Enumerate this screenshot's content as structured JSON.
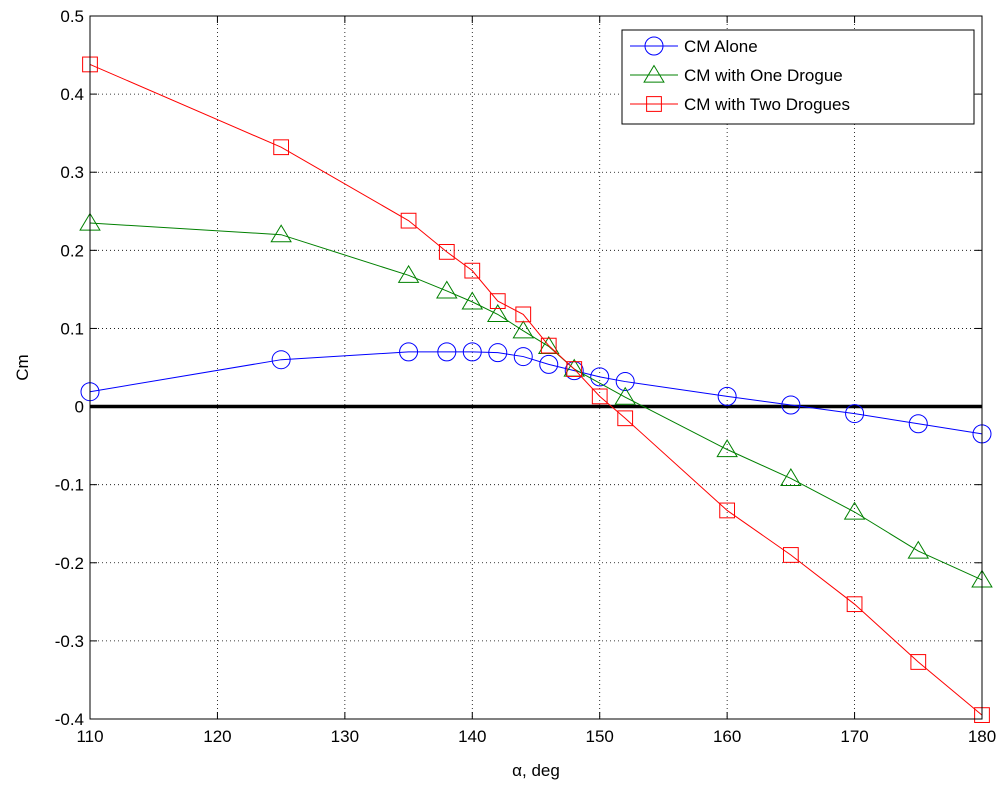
{
  "chart_data": {
    "type": "line",
    "title": "",
    "xlabel": "α, deg",
    "ylabel": "Cm",
    "xlim": [
      110,
      180
    ],
    "ylim": [
      -0.4,
      0.5
    ],
    "x_ticks": [
      110,
      120,
      130,
      140,
      150,
      160,
      170,
      180
    ],
    "x_tick_labels": [
      "110",
      "120",
      "130",
      "140",
      "150",
      "160",
      "170",
      "180"
    ],
    "y_ticks": [
      -0.4,
      -0.3,
      -0.2,
      -0.1,
      0,
      0.1,
      0.2,
      0.3,
      0.4,
      0.5
    ],
    "y_tick_labels": [
      "-0.4",
      "-0.3",
      "-0.2",
      "-0.1",
      "0",
      "0.1",
      "0.2",
      "0.3",
      "0.4",
      "0.5"
    ],
    "grid": true,
    "legend_position": "top-right",
    "reference_line": {
      "y": 0,
      "color": "#000000"
    },
    "series": [
      {
        "name": "CM Alone",
        "color": "#0000ff",
        "marker": "circle",
        "x": [
          110,
          125,
          135,
          138,
          140,
          142,
          144,
          146,
          148,
          150,
          152,
          160,
          165,
          170,
          175,
          180
        ],
        "y": [
          0.019,
          0.06,
          0.07,
          0.07,
          0.07,
          0.069,
          0.064,
          0.054,
          0.046,
          0.038,
          0.032,
          0.013,
          0.002,
          -0.009,
          -0.022,
          -0.035
        ]
      },
      {
        "name": "CM with One Drogue",
        "color": "#008000",
        "marker": "triangle",
        "x": [
          110,
          125,
          135,
          138,
          140,
          142,
          144,
          146,
          148,
          152,
          160,
          165,
          170,
          175,
          180
        ],
        "y": [
          0.235,
          0.22,
          0.168,
          0.148,
          0.134,
          0.118,
          0.097,
          0.077,
          0.048,
          0.012,
          -0.055,
          -0.092,
          -0.135,
          -0.185,
          -0.222
        ]
      },
      {
        "name": "CM with Two Drogues",
        "color": "#ff0000",
        "marker": "square",
        "x": [
          110,
          125,
          135,
          138,
          140,
          142,
          144,
          146,
          148,
          150,
          152,
          160,
          165,
          170,
          175,
          180
        ],
        "y": [
          0.438,
          0.332,
          0.238,
          0.198,
          0.174,
          0.135,
          0.118,
          0.078,
          0.048,
          0.013,
          -0.015,
          -0.133,
          -0.19,
          -0.253,
          -0.327,
          -0.395
        ]
      }
    ]
  }
}
